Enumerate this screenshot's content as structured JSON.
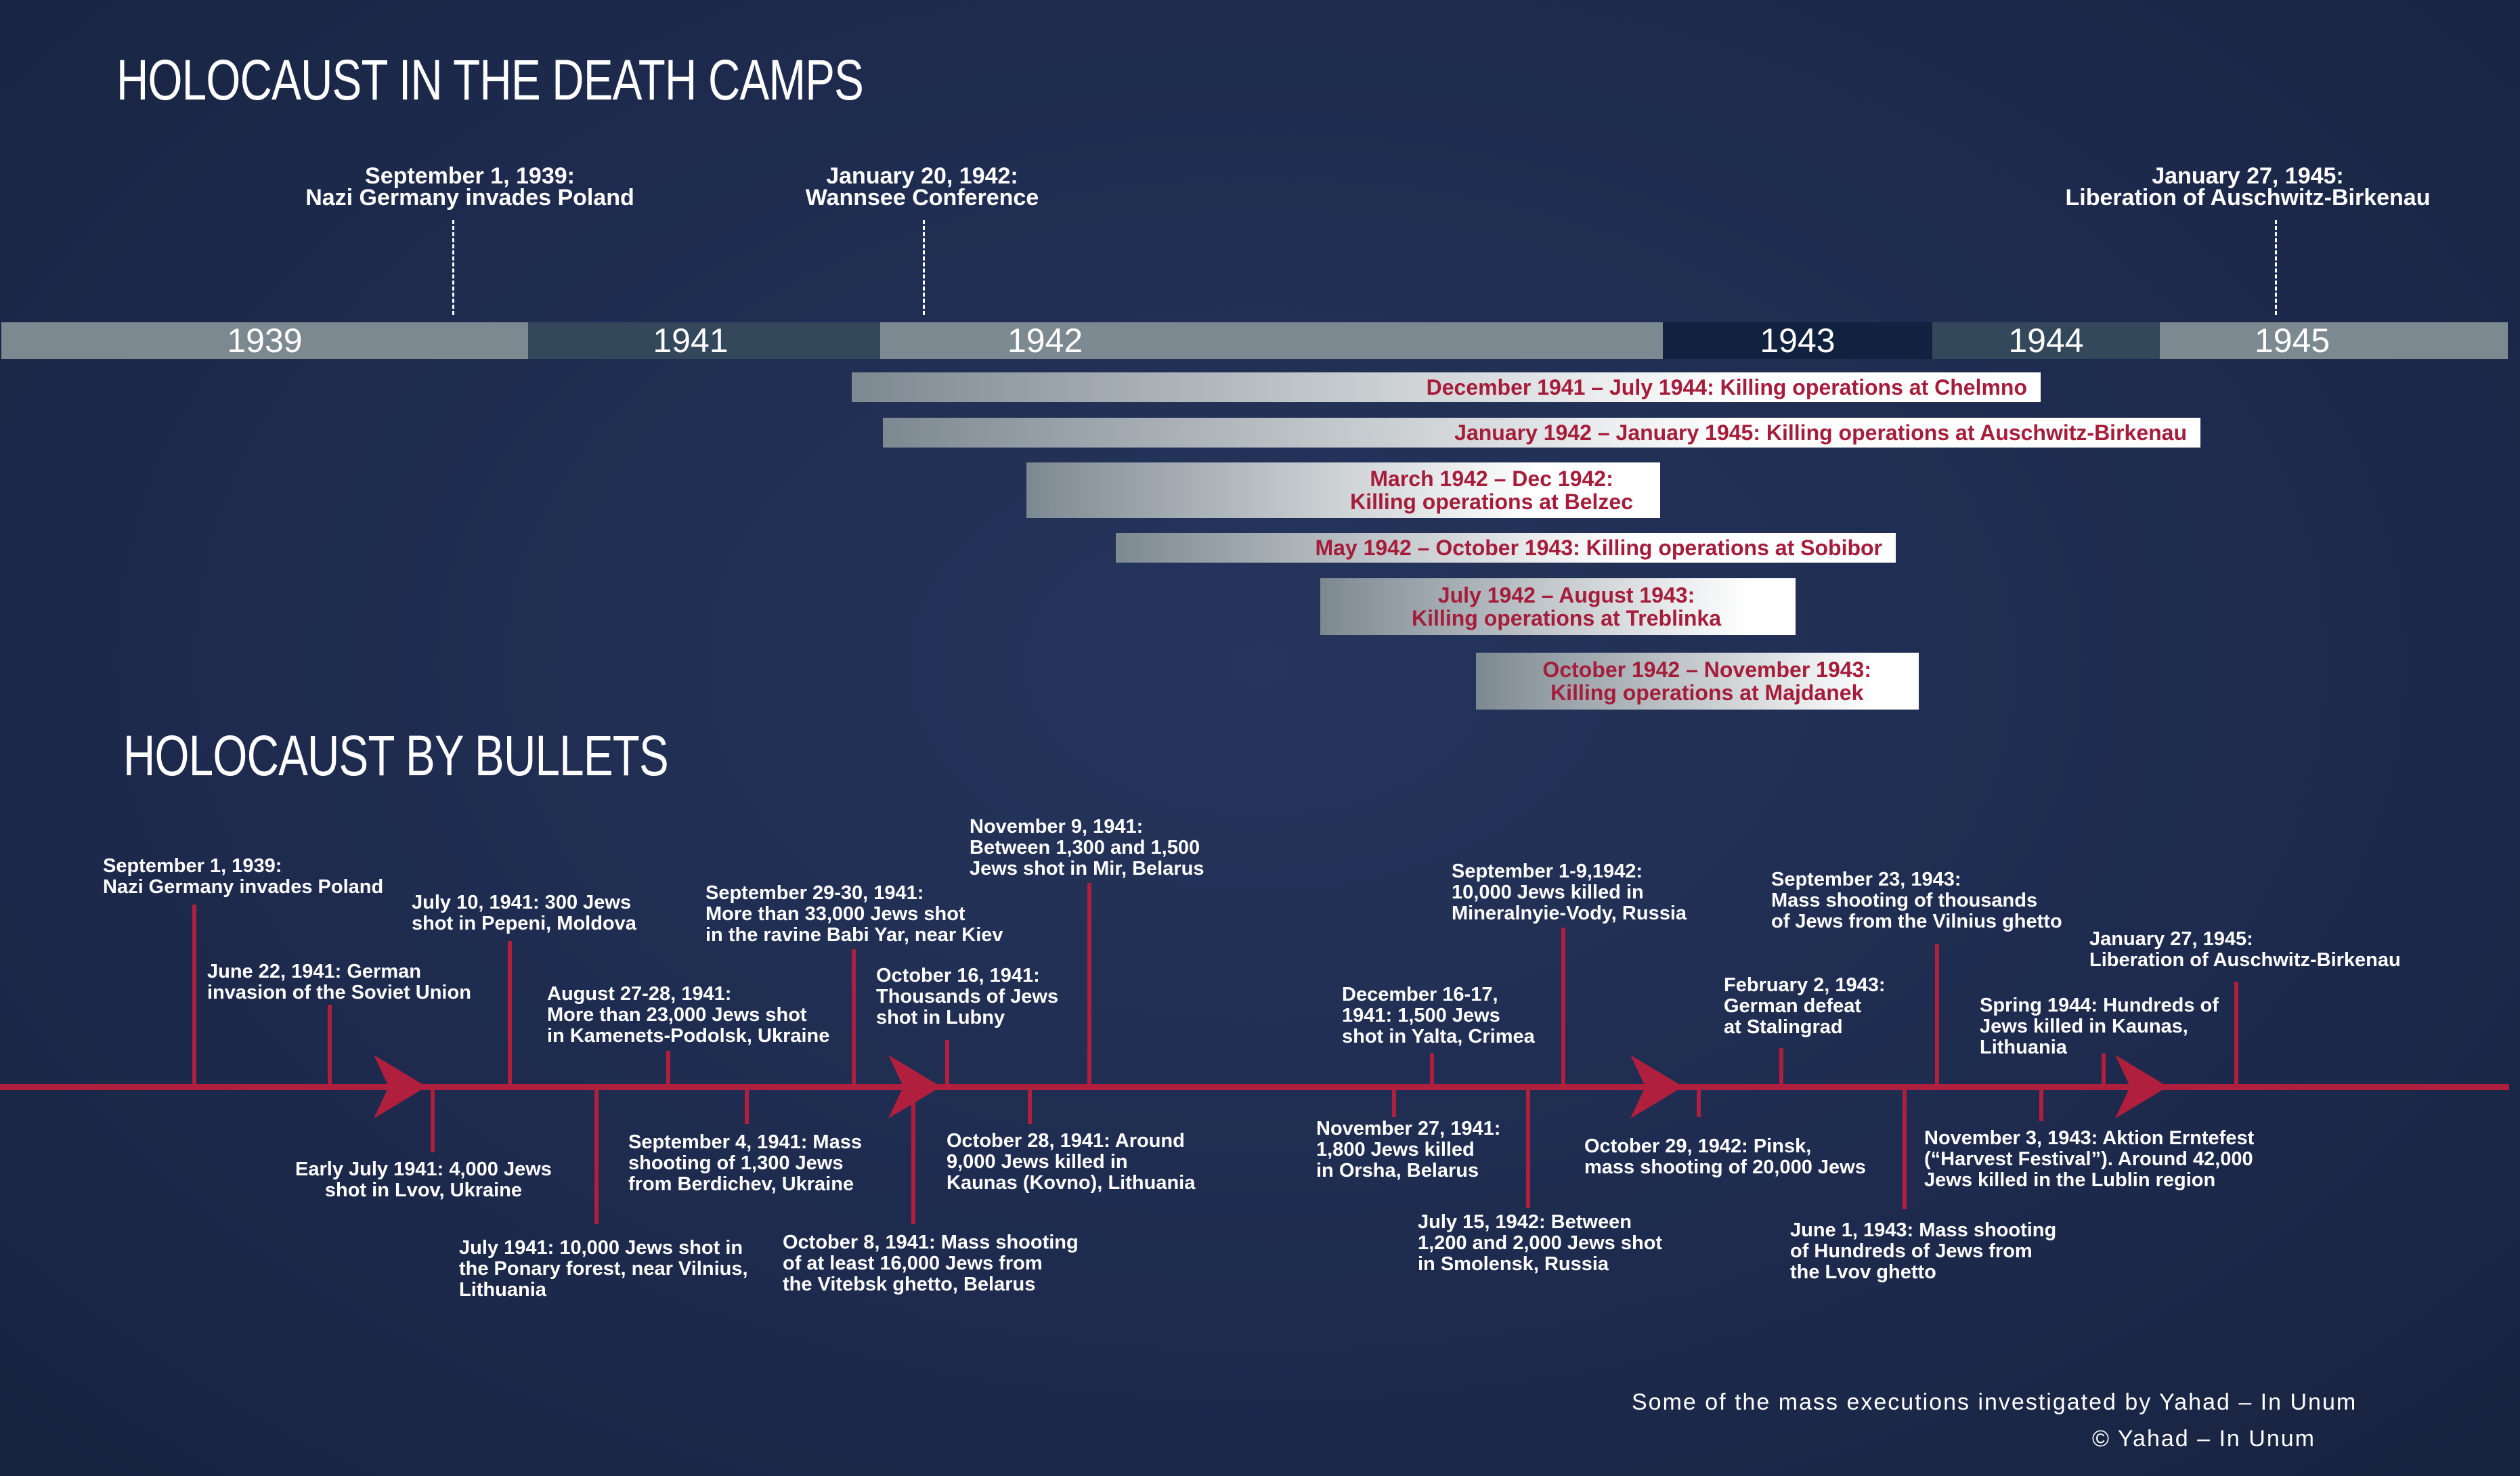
{
  "death_camps": {
    "title": "HOLOCAUST IN THE DEATH CAMPS",
    "top_events": [
      {
        "date": "September 1, 1939:",
        "text": "Nazi Germany invades Poland"
      },
      {
        "date": "January 20, 1942:",
        "text": "Wannsee Conference"
      },
      {
        "date": "January 27, 1945:",
        "text": "Liberation of Auschwitz-Birkenau"
      }
    ],
    "years": [
      "1939",
      "1941",
      "1942",
      "1943",
      "1944",
      "1945"
    ],
    "camps": [
      {
        "lines": [
          "December 1941 – July 1944: Killing operations at Chelmno"
        ]
      },
      {
        "lines": [
          "January 1942 – January 1945: Killing operations at Auschwitz-Birkenau"
        ]
      },
      {
        "lines": [
          "March 1942 – Dec 1942:",
          "Killing operations at Belzec"
        ]
      },
      {
        "lines": [
          "May 1942 – October 1943: Killing operations at Sobibor"
        ]
      },
      {
        "lines": [
          "July 1942 – August 1943:",
          "Killing operations at Treblinka"
        ]
      },
      {
        "lines": [
          "October 1942 – November 1943:",
          "Killing operations at Majdanek"
        ]
      }
    ]
  },
  "bullets": {
    "title": "HOLOCAUST BY BULLETS",
    "events": [
      {
        "lines": [
          "September 1, 1939:",
          "Nazi Germany invades Poland"
        ]
      },
      {
        "lines": [
          "June 22, 1941: German",
          "invasion of the Soviet Union"
        ]
      },
      {
        "lines": [
          "Early July 1941: 4,000 Jews",
          "shot in Lvov, Ukraine"
        ]
      },
      {
        "lines": [
          "July 10, 1941: 300 Jews",
          "shot in Pepeni, Moldova"
        ]
      },
      {
        "lines": [
          "July 1941: 10,000 Jews shot in",
          "the Ponary forest, near Vilnius,",
          "Lithuania"
        ]
      },
      {
        "lines": [
          "August 27-28, 1941:",
          "More than 23,000 Jews shot",
          "in Kamenets-Podolsk, Ukraine"
        ]
      },
      {
        "lines": [
          "September 4, 1941: Mass",
          "shooting of 1,300 Jews",
          "from Berdichev, Ukraine"
        ]
      },
      {
        "lines": [
          "September 29-30, 1941:",
          "More than 33,000 Jews shot",
          "in the ravine Babi Yar, near Kiev"
        ]
      },
      {
        "lines": [
          "October 8, 1941: Mass shooting",
          "of at least 16,000 Jews from",
          "the Vitebsk ghetto, Belarus"
        ]
      },
      {
        "lines": [
          "October 16, 1941:",
          "Thousands of Jews",
          "shot in Lubny"
        ]
      },
      {
        "lines": [
          "October 28, 1941: Around",
          "9,000 Jews killed in",
          "Kaunas (Kovno), Lithuania"
        ]
      },
      {
        "lines": [
          "November 9, 1941:",
          "Between 1,300 and 1,500",
          "Jews shot in Mir, Belarus"
        ]
      },
      {
        "lines": [
          "November 27, 1941:",
          "1,800 Jews killed",
          "in Orsha, Belarus"
        ]
      },
      {
        "lines": [
          "December 16-17,",
          "1941: 1,500 Jews",
          "shot in Yalta, Crimea"
        ]
      },
      {
        "lines": [
          "July 15, 1942: Between",
          "1,200 and 2,000 Jews shot",
          "in Smolensk, Russia"
        ]
      },
      {
        "lines": [
          "September 1-9,1942:",
          "10,000 Jews killed in",
          "Mineralnyie-Vody, Russia"
        ]
      },
      {
        "lines": [
          "October 29, 1942: Pinsk,",
          "mass shooting of 20,000 Jews"
        ]
      },
      {
        "lines": [
          "February 2, 1943:",
          "German defeat",
          "at Stalingrad"
        ]
      },
      {
        "lines": [
          "June 1, 1943: Mass shooting",
          "of Hundreds of Jews from",
          "the Lvov ghetto"
        ]
      },
      {
        "lines": [
          "September 23, 1943:",
          "Mass shooting of thousands",
          "of Jews from the Vilnius ghetto"
        ]
      },
      {
        "lines": [
          "November 3, 1943: Aktion Erntefest",
          "(“Harvest Festival”). Around 42,000",
          "Jews killed in the Lublin region"
        ]
      },
      {
        "lines": [
          "Spring 1944: Hundreds of",
          "Jews killed in Kaunas,",
          "Lithuania"
        ]
      },
      {
        "lines": [
          "January 27, 1945:",
          "Liberation of Auschwitz-Birkenau"
        ]
      }
    ]
  },
  "footer": {
    "note": "Some of the mass executions investigated by Yahad – In Unum",
    "copyright": "© Yahad – In Unum"
  },
  "colors": {
    "background": "#1e2b4f",
    "accent_red": "#b01f3e",
    "camp_text": "#a51d3a",
    "year_bar_light": "#7d8991",
    "year_bar_dark": "#34485c",
    "year_bar_darkest": "#10223f"
  }
}
